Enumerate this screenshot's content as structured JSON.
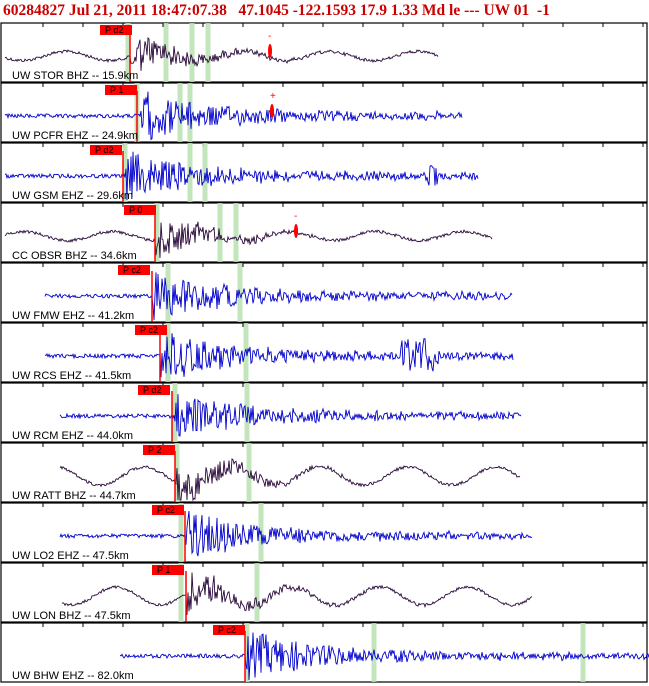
{
  "header": {
    "text": "60284827 Jul 21, 2011 18:47:07.38   47.1045 -122.1593 17.9 1.33 Md le --- UW 01  -1"
  },
  "colors": {
    "header": "#cc0000",
    "pick_box": "#ff0000",
    "trace_vertical": "#0000cc",
    "trace_broadband": "#2a0a3a",
    "phase_marker": "#b8e0b0"
  },
  "traces": [
    {
      "label": "UW STOR BHZ -- 15.9km",
      "pick": "P d2",
      "type": "broadband",
      "note": "-"
    },
    {
      "label": "UW PCFR EHZ -- 24.9km",
      "pick": "P 1",
      "type": "vertical",
      "note": "+"
    },
    {
      "label": "UW GSM EHZ -- 29.6km",
      "pick": "P d2",
      "type": "vertical",
      "note": ""
    },
    {
      "label": "CC OBSR BHZ -- 34.6km",
      "pick": "P 0",
      "type": "broadband",
      "note": "-"
    },
    {
      "label": "UW FMW EHZ -- 41.2km",
      "pick": "P c2",
      "type": "vertical",
      "note": ""
    },
    {
      "label": "UW RCS EHZ -- 41.5km",
      "pick": "P c2",
      "type": "vertical",
      "note": ""
    },
    {
      "label": "UW RCM EHZ -- 44.0km",
      "pick": "P d2",
      "type": "vertical",
      "note": ""
    },
    {
      "label": "UW RATT BHZ -- 44.7km",
      "pick": "P 2",
      "type": "broadband",
      "note": ""
    },
    {
      "label": "UW LO2 EHZ -- 47.5km",
      "pick": "P c2",
      "type": "vertical",
      "note": ""
    },
    {
      "label": "UW LON BHZ -- 47.5km",
      "pick": "P 1",
      "type": "broadband",
      "note": ""
    },
    {
      "label": "UW BHW EHZ -- 82.0km",
      "pick": "P c2",
      "type": "vertical",
      "note": ""
    }
  ]
}
